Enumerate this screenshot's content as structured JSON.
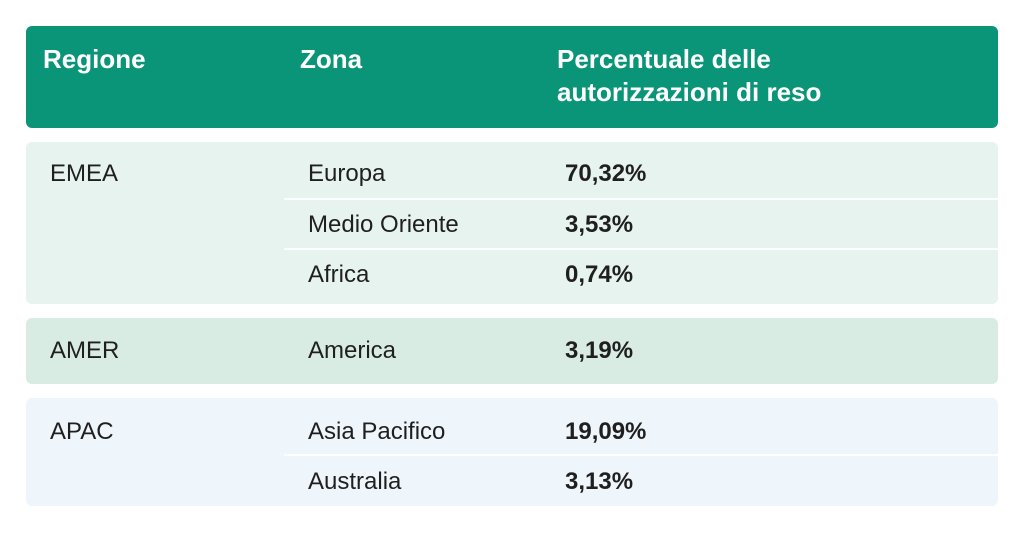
{
  "header": {
    "col_region": "Regione",
    "col_zone": "Zona",
    "col_percentage": "Percentuale delle autorizzazioni di reso"
  },
  "groups": [
    {
      "region": "EMEA",
      "rows": [
        {
          "zone": "Europa",
          "percentage": "70,32%"
        },
        {
          "zone": "Medio Oriente",
          "percentage": "3,53%"
        },
        {
          "zone": "Africa",
          "percentage": "0,74%"
        }
      ]
    },
    {
      "region": "AMER",
      "rows": [
        {
          "zone": "America",
          "percentage": "3,19%"
        }
      ]
    },
    {
      "region": "APAC",
      "rows": [
        {
          "zone": "Asia Pacifico",
          "percentage": "19,09%"
        },
        {
          "zone": "Australia",
          "percentage": "3,13%"
        }
      ]
    }
  ],
  "colors": {
    "header_bg": "#0a9478",
    "emea_bg": "#e7f3ef",
    "amer_bg": "#d9ece4",
    "apac_bg": "#eef5fb"
  }
}
